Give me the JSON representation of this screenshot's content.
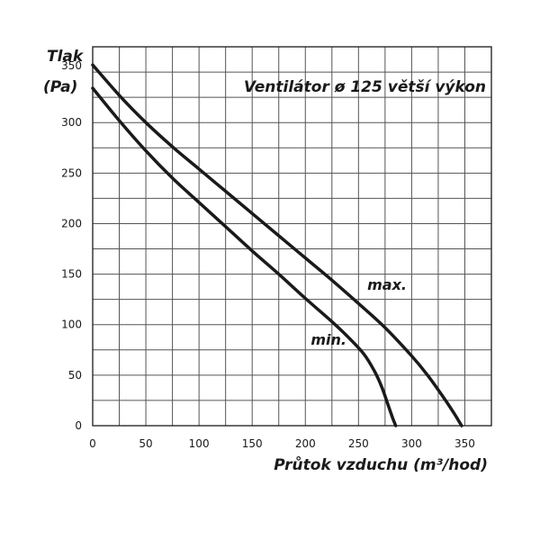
{
  "chart_data": {
    "type": "line",
    "title": "Ventilátor ø 125 větší výkon",
    "ylabel_line1": "Tlak",
    "ylabel_line2": "(Pa)",
    "xlabel": "Průtok vzduchu (m³/hod)",
    "xlim": [
      0,
      375
    ],
    "ylim": [
      0,
      375
    ],
    "x_ticks": [
      0,
      50,
      100,
      150,
      200,
      250,
      300,
      350
    ],
    "y_ticks": [
      0,
      50,
      100,
      150,
      200,
      250,
      300,
      350
    ],
    "grid": true,
    "series": [
      {
        "name": "max.",
        "x": [
          0,
          25,
          50,
          75,
          100,
          125,
          150,
          175,
          200,
          225,
          250,
          275,
          300,
          315,
          330,
          340,
          347
        ],
        "y": [
          357,
          327,
          300,
          276,
          254,
          232,
          210,
          188,
          166,
          144,
          121,
          97,
          69,
          50,
          28,
          12,
          0
        ]
      },
      {
        "name": "min.",
        "x": [
          0,
          25,
          50,
          75,
          100,
          125,
          150,
          175,
          200,
          225,
          240,
          255,
          265,
          272,
          278,
          282,
          285
        ],
        "y": [
          334,
          302,
          272,
          245,
          221,
          197,
          173,
          150,
          126,
          103,
          88,
          71,
          54,
          38,
          20,
          8,
          0
        ]
      }
    ],
    "line_color": "#1a1a1a"
  }
}
